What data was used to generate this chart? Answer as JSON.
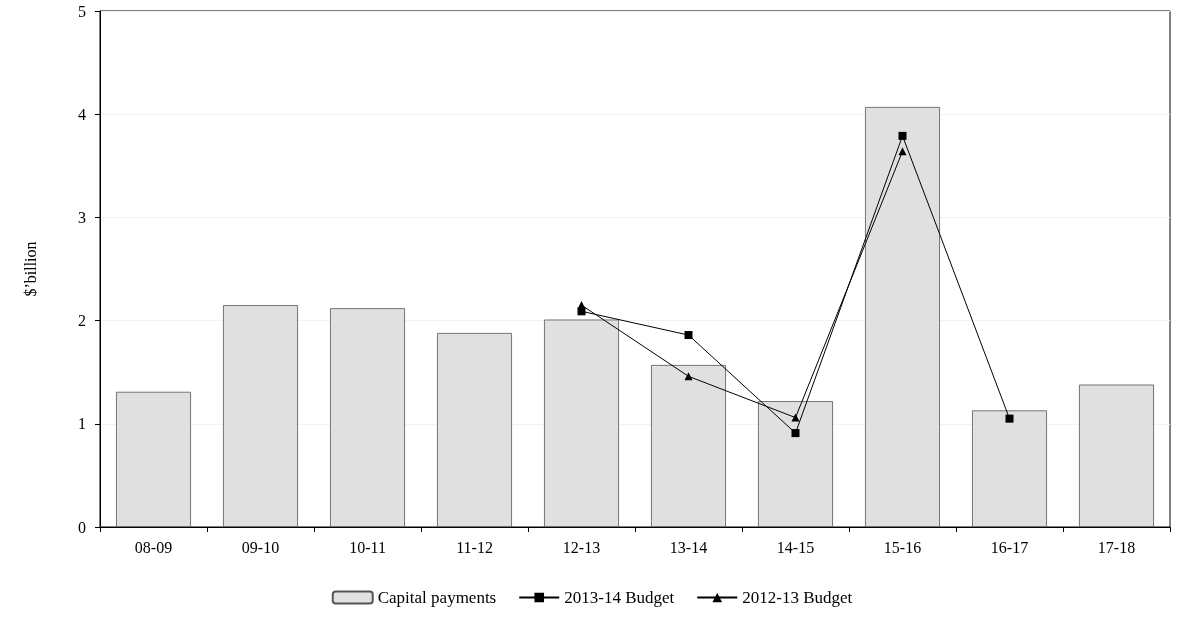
{
  "chart_data": {
    "type": "bar",
    "ylabel": "$’billion",
    "categories": [
      "08-09",
      "09-10",
      "10-11",
      "11-12",
      "12-13",
      "13-14",
      "14-15",
      "15-16",
      "16-17",
      "17-18"
    ],
    "series": [
      {
        "name": "Capital payments",
        "color": "#e0e0e0",
        "values": [
          1.31,
          2.15,
          2.12,
          1.88,
          2.01,
          1.57,
          1.22,
          4.07,
          1.13,
          1.38
        ]
      },
      {
        "name": "2013-14 Budget",
        "type": "line",
        "marker": "square",
        "color": "#000000",
        "values": [
          null,
          null,
          null,
          null,
          2.09,
          1.86,
          0.91,
          3.79,
          1.05,
          null
        ]
      },
      {
        "name": "2012-13 Budget",
        "type": "line",
        "marker": "triangle",
        "color": "#000000",
        "values": [
          null,
          null,
          null,
          null,
          2.15,
          1.46,
          1.06,
          3.64,
          null,
          null
        ]
      }
    ],
    "ylim": [
      0,
      5
    ],
    "yticks": [
      0,
      1,
      2,
      3,
      4,
      5
    ],
    "grid": "y",
    "legend": "bottom",
    "line_style": "solid"
  }
}
